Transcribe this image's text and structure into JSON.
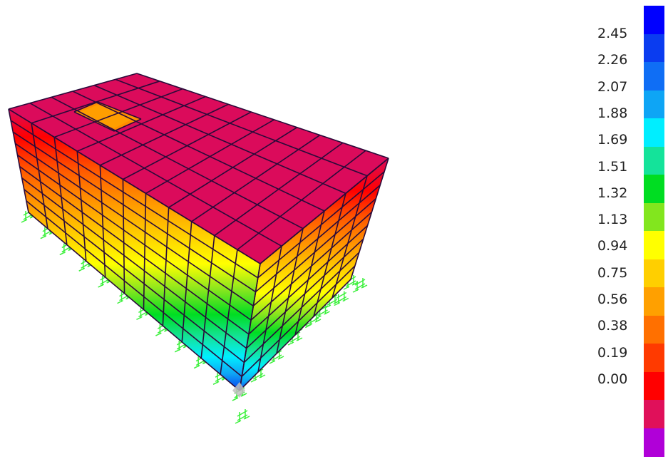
{
  "legend": {
    "ticks": [
      "2.45",
      "2.26",
      "2.07",
      "1.88",
      "1.69",
      "1.51",
      "1.32",
      "1.13",
      "0.94",
      "0.75",
      "0.56",
      "0.38",
      "0.19",
      "0.00"
    ],
    "colors": [
      "#0000ff",
      "#0a3cf0",
      "#0f6ef5",
      "#0ea5f5",
      "#00eeff",
      "#14e39a",
      "#00dd22",
      "#82e61e",
      "#ffff00",
      "#ffcf00",
      "#ffa000",
      "#ff7000",
      "#ff3a00",
      "#ff0000",
      "#e0105a",
      "#b000d8"
    ]
  },
  "model": {
    "description_colors": {
      "roof": "#db0b5b",
      "edge": "#2a0a3a",
      "support": "#3cf03c",
      "opening": "#ff8c00"
    }
  }
}
